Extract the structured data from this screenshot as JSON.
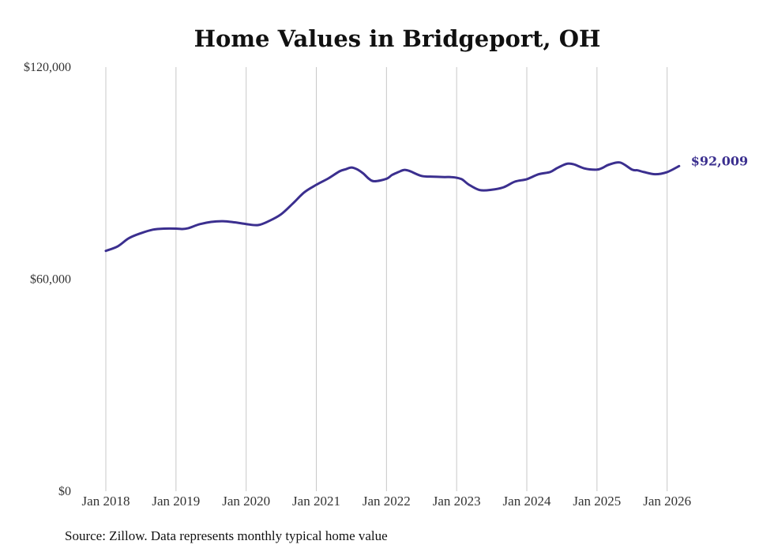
{
  "chart_data": {
    "type": "line",
    "title": "Home Values in Bridgeport, OH",
    "source": "Source: Zillow. Data represents monthly typical home value",
    "xlabel": "",
    "ylabel": "",
    "ylim": [
      0,
      120000
    ],
    "xlim": [
      2018.0,
      2026.33
    ],
    "y_ticks": [
      {
        "value": 0,
        "label": "$0"
      },
      {
        "value": 60000,
        "label": "$60,000"
      },
      {
        "value": 120000,
        "label": "$120,000"
      }
    ],
    "x_ticks": [
      {
        "value": 2018,
        "label": "Jan 2018"
      },
      {
        "value": 2019,
        "label": "Jan 2019"
      },
      {
        "value": 2020,
        "label": "Jan 2020"
      },
      {
        "value": 2021,
        "label": "Jan 2021"
      },
      {
        "value": 2022,
        "label": "Jan 2022"
      },
      {
        "value": 2023,
        "label": "Jan 2023"
      },
      {
        "value": 2024,
        "label": "Jan 2024"
      },
      {
        "value": 2025,
        "label": "Jan 2025"
      },
      {
        "value": 2026,
        "label": "Jan 2026"
      }
    ],
    "grid": "vertical",
    "line_color": "#3b2f8f",
    "end_label": "$92,009",
    "series": [
      {
        "name": "Typical home value",
        "x": [
          2018.0,
          2018.17,
          2018.33,
          2018.5,
          2018.67,
          2018.83,
          2019.0,
          2019.08,
          2019.17,
          2019.33,
          2019.5,
          2019.67,
          2019.83,
          2020.0,
          2020.17,
          2020.33,
          2020.5,
          2020.67,
          2020.83,
          2021.0,
          2021.17,
          2021.33,
          2021.42,
          2021.5,
          2021.58,
          2021.67,
          2021.75,
          2021.83,
          2022.0,
          2022.08,
          2022.17,
          2022.25,
          2022.33,
          2022.5,
          2022.67,
          2022.83,
          2022.92,
          2023.0,
          2023.08,
          2023.17,
          2023.33,
          2023.5,
          2023.67,
          2023.83,
          2024.0,
          2024.17,
          2024.33,
          2024.42,
          2024.5,
          2024.58,
          2024.67,
          2024.83,
          2025.0,
          2025.08,
          2025.17,
          2025.33,
          2025.5,
          2025.58,
          2025.67,
          2025.83,
          2026.0,
          2026.17
        ],
        "values": [
          68000,
          69300,
          71600,
          73000,
          74000,
          74300,
          74300,
          74200,
          74400,
          75500,
          76200,
          76400,
          76100,
          75600,
          75300,
          76500,
          78400,
          81500,
          84600,
          86700,
          88500,
          90500,
          91100,
          91600,
          91100,
          89900,
          88400,
          87700,
          88400,
          89500,
          90300,
          90900,
          90600,
          89200,
          89000,
          88900,
          88900,
          88700,
          88200,
          86800,
          85200,
          85300,
          86000,
          87600,
          88300,
          89700,
          90300,
          91300,
          92100,
          92700,
          92500,
          91300,
          91000,
          91500,
          92400,
          93000,
          91000,
          90800,
          90300,
          89700,
          90300,
          92009
        ]
      }
    ]
  }
}
